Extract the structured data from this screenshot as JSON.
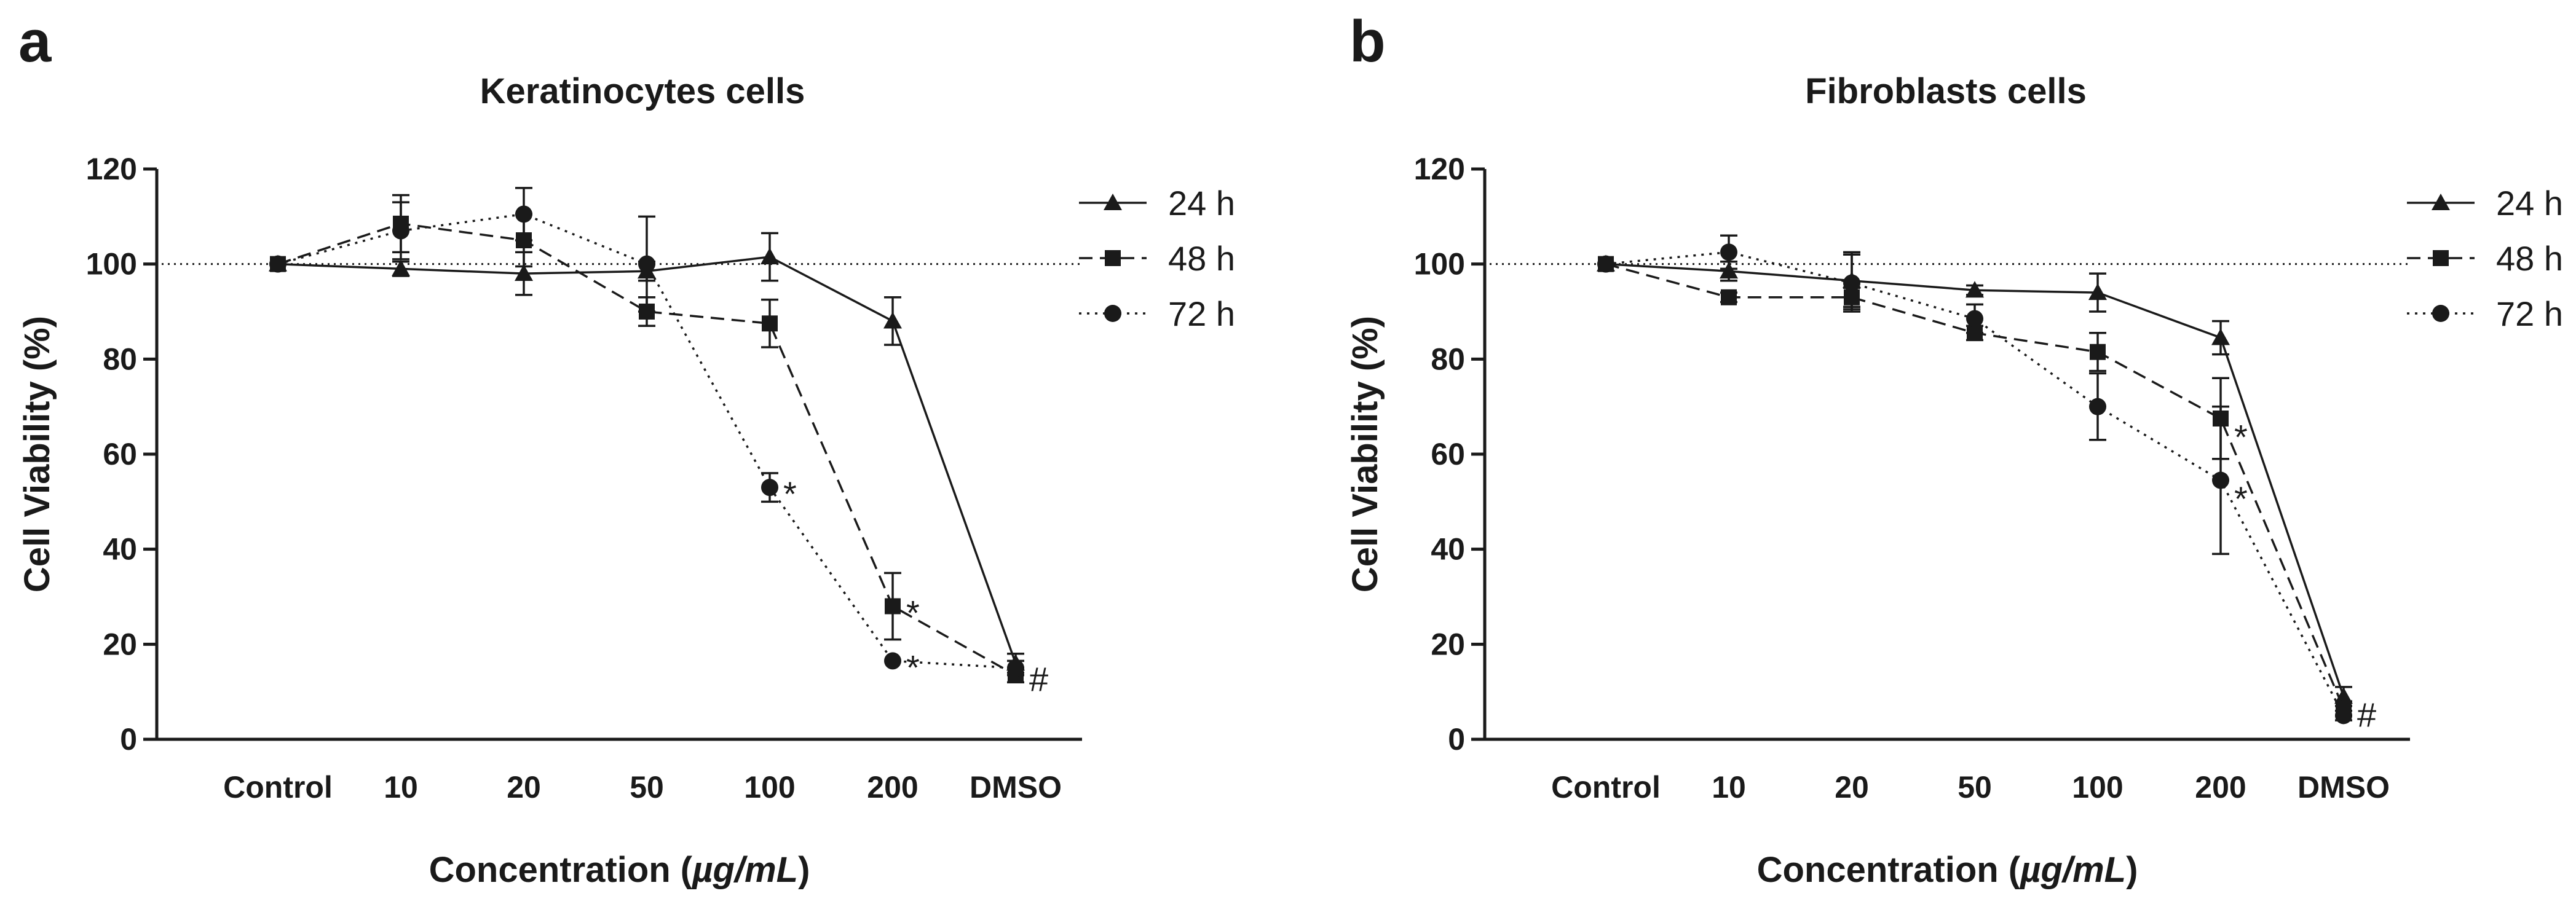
{
  "chart_data": [
    {
      "type": "line",
      "panel_label": "a",
      "title": "Keratinocytes cells",
      "xlabel_prefix": "Concentration (",
      "xlabel_unit": "µg/mL",
      "xlabel_suffix": ")",
      "ylabel": "Cell Viability (%)",
      "categories": [
        "Control",
        "10",
        "20",
        "50",
        "100",
        "200",
        "DMSO"
      ],
      "ylim": [
        0,
        120
      ],
      "yticks": [
        "0",
        "20",
        "40",
        "60",
        "80",
        "100",
        "120"
      ],
      "reference_line": 100,
      "legend_position": "top-right",
      "series": [
        {
          "name": "24 h",
          "marker": "triangle",
          "dash": "solid",
          "values": [
            100,
            99,
            98,
            98.5,
            101.5,
            88,
            16
          ],
          "errors": [
            0,
            1.5,
            4.5,
            2,
            5,
            5,
            2
          ]
        },
        {
          "name": "48 h",
          "marker": "square",
          "dash": "dashed",
          "values": [
            100,
            108.5,
            105,
            90,
            87.5,
            28,
            13.5
          ],
          "errors": [
            0,
            6,
            5.5,
            3,
            5,
            7,
            1.5
          ]
        },
        {
          "name": "72 h",
          "marker": "circle",
          "dash": "dotted",
          "values": [
            100,
            107,
            110.5,
            100,
            53,
            16.5,
            15
          ],
          "errors": [
            0,
            6,
            5.5,
            10,
            3,
            0,
            1.5
          ]
        }
      ],
      "annotations": [
        {
          "text": "*",
          "category": "100",
          "value": 53
        },
        {
          "text": "*",
          "category": "200",
          "value": 28
        },
        {
          "text": "*",
          "category": "200",
          "value": 16.5
        },
        {
          "text": "#",
          "category": "DMSO",
          "value": 14
        }
      ]
    },
    {
      "type": "line",
      "panel_label": "b",
      "title": "Fibroblasts cells",
      "xlabel_prefix": "Concentration (",
      "xlabel_unit": "µg/mL",
      "xlabel_suffix": ")",
      "ylabel": "Cell Viability (%)",
      "categories": [
        "Control",
        "10",
        "20",
        "50",
        "100",
        "200",
        "DMSO"
      ],
      "ylim": [
        0,
        120
      ],
      "yticks": [
        "0",
        "20",
        "40",
        "60",
        "80",
        "100",
        "120"
      ],
      "reference_line": 100,
      "legend_position": "top-right",
      "series": [
        {
          "name": "24 h",
          "marker": "triangle",
          "dash": "solid",
          "values": [
            100,
            98.5,
            96.5,
            94.5,
            94,
            84.5,
            9
          ],
          "errors": [
            0,
            2,
            6,
            1,
            4,
            3.5,
            2
          ]
        },
        {
          "name": "48 h",
          "marker": "square",
          "dash": "dashed",
          "values": [
            100,
            93,
            93,
            85.5,
            81.5,
            67.5,
            6.5
          ],
          "errors": [
            0,
            1,
            2,
            1.5,
            4,
            8.5,
            1.5
          ]
        },
        {
          "name": "72 h",
          "marker": "circle",
          "dash": "dotted",
          "values": [
            100,
            102.5,
            96,
            88.5,
            70,
            54.5,
            5
          ],
          "errors": [
            0,
            3.5,
            6,
            3,
            7,
            15.5,
            1
          ]
        }
      ],
      "annotations": [
        {
          "text": "*",
          "category": "200",
          "value": 65
        },
        {
          "text": "*",
          "category": "200",
          "value": 52
        },
        {
          "text": "#",
          "category": "DMSO",
          "value": 6.5
        }
      ]
    }
  ]
}
